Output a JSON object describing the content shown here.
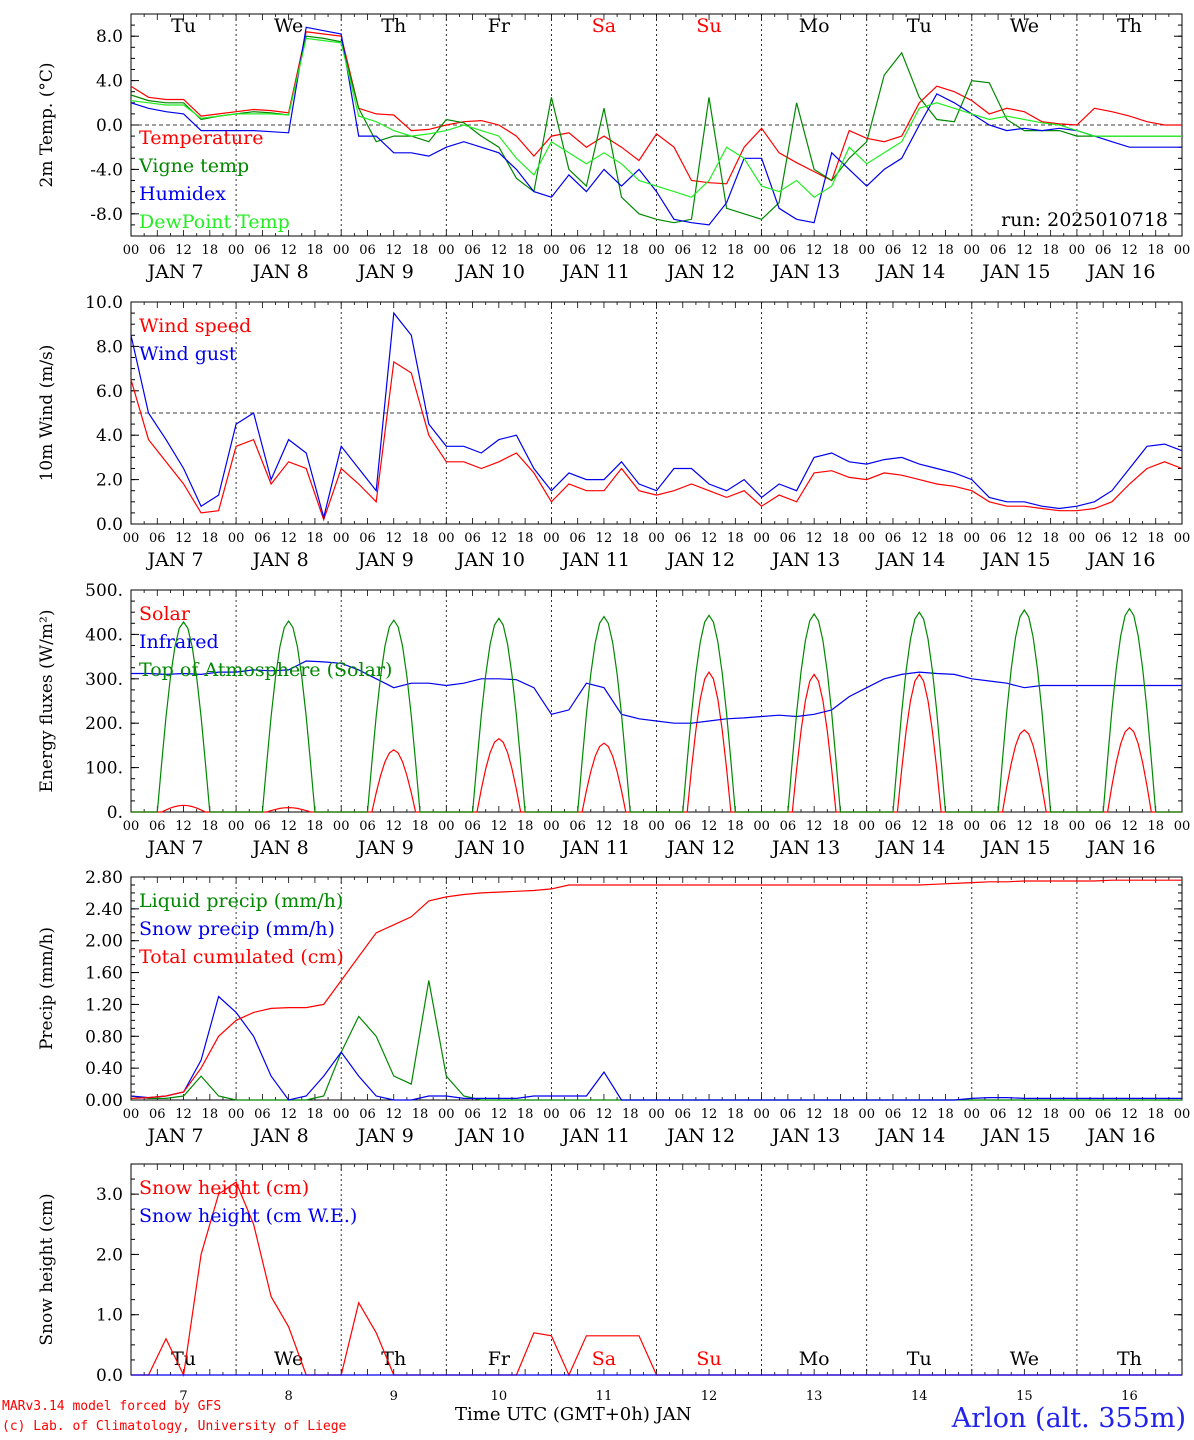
{
  "days_header": [
    "Tu",
    "We",
    "Th",
    "Fr",
    "Sa",
    "Su",
    "Mo",
    "Tu",
    "We",
    "Th"
  ],
  "weekend_days": [
    4,
    5
  ],
  "date_labels": [
    "JAN  7",
    "JAN  8",
    "JAN  9",
    "JAN 10",
    "JAN 11",
    "JAN 12",
    "JAN 13",
    "JAN 14",
    "JAN 15",
    "JAN 16"
  ],
  "hour_labels": [
    "00",
    "06",
    "12",
    "18"
  ],
  "hour_end_label": "00",
  "run_label": "run: 2025010718",
  "footer": {
    "model": "MARv3.14 model forced by GFS",
    "lab": "(c) Lab. of Climatology, University of Liege",
    "axis": "Time UTC (GMT+0h) JAN",
    "station": "Arlon (alt. 355m)"
  },
  "bottom_day_numbers": [
    "7",
    "8",
    "9",
    "10",
    "11",
    "12",
    "13",
    "14",
    "15",
    "16"
  ],
  "colors": {
    "red": "#ff0000",
    "green": "#008800",
    "blue": "#0000ee",
    "lightgreen": "#22ee22",
    "black": "#000000"
  },
  "chart_data": [
    {
      "type": "line",
      "ylabel": "2m Temp. (°C)",
      "ylim": [
        -10,
        10
      ],
      "yticks": [
        "8.0",
        "4.0",
        "0.0",
        "-4.0",
        "-8.0"
      ],
      "yticks_values": [
        8,
        4,
        0,
        -4,
        -8
      ],
      "ref_line": 0,
      "x": "hours since JAN 7 00 UTC, 3-hourly, 0..240",
      "series": [
        {
          "name": "Temperature",
          "color": "#ff0000",
          "values": [
            3.5,
            2.5,
            2.3,
            2.3,
            0.8,
            1.0,
            1.2,
            1.4,
            1.3,
            1.1,
            8.4,
            8.2,
            8.0,
            1.5,
            1.0,
            0.9,
            -0.5,
            -0.4,
            0.0,
            0.3,
            0.4,
            0.0,
            -1.0,
            -2.8,
            -1.0,
            -0.7,
            -2.0,
            -1.0,
            -2.0,
            -3.2,
            -0.8,
            -2.0,
            -5.0,
            -5.2,
            -5.3,
            -2.0,
            -0.3,
            -2.5,
            -3.4,
            -4.2,
            -5.0,
            -0.5,
            -1.2,
            -1.5,
            -1.0,
            2.0,
            3.5,
            3.0,
            2.2,
            1.0,
            1.5,
            1.2,
            0.3,
            0.1,
            0.0,
            1.5,
            1.2,
            0.8,
            0.3,
            0.0,
            0.0
          ]
        },
        {
          "name": "Vigne temp",
          "color": "#008800",
          "values": [
            2.7,
            2.2,
            2.0,
            2.0,
            0.5,
            0.8,
            1.0,
            1.2,
            1.1,
            0.9,
            8.0,
            7.8,
            7.5,
            1.5,
            -1.5,
            -1.0,
            -1.0,
            -1.5,
            0.5,
            0.2,
            -1.0,
            -2.0,
            -4.8,
            -6.0,
            2.5,
            -4.0,
            -5.5,
            1.5,
            -6.5,
            -8.0,
            -8.5,
            -8.8,
            -8.5,
            2.5,
            -7.5,
            -8.0,
            -8.5,
            -7.0,
            2.0,
            -4.0,
            -5.0,
            -3.0,
            -1.5,
            4.5,
            6.5,
            2.5,
            0.5,
            0.3,
            4.0,
            3.8,
            0.5,
            -0.5,
            -0.5,
            -0.5,
            -1.0,
            -1.0,
            -1.0,
            -1.0,
            -1.0,
            -1.0,
            -1.0
          ]
        },
        {
          "name": "Humidex",
          "color": "#0000ee",
          "values": [
            2.0,
            1.5,
            1.2,
            1.0,
            -0.5,
            -0.5,
            -0.5,
            -0.5,
            -0.6,
            -0.7,
            8.8,
            8.5,
            8.2,
            -1.0,
            -1.0,
            -2.5,
            -2.5,
            -2.8,
            -2.0,
            -1.5,
            -2.0,
            -2.5,
            -4.0,
            -6.0,
            -6.5,
            -4.5,
            -6.0,
            -4.0,
            -5.5,
            -4.0,
            -6.0,
            -8.5,
            -8.8,
            -9.0,
            -7.0,
            -3.0,
            -3.0,
            -7.5,
            -8.5,
            -8.8,
            -2.5,
            -4.0,
            -5.5,
            -4.0,
            -3.0,
            0.0,
            2.8,
            2.0,
            1.0,
            0.0,
            -0.5,
            -0.3,
            -0.5,
            -0.3,
            -0.5,
            -1.0,
            -1.5,
            -2.0,
            -2.0,
            -2.0,
            -2.0
          ]
        },
        {
          "name": "DewPoint Temp",
          "color": "#22ee22",
          "values": [
            2.2,
            2.0,
            1.8,
            1.8,
            0.6,
            0.8,
            1.0,
            1.0,
            1.0,
            0.9,
            7.8,
            7.6,
            7.4,
            0.8,
            0.3,
            -0.5,
            -1.0,
            -0.8,
            -0.5,
            0.0,
            -0.5,
            -1.0,
            -3.0,
            -4.5,
            -1.5,
            -2.5,
            -3.5,
            -2.5,
            -3.5,
            -5.0,
            -5.5,
            -6.0,
            -6.5,
            -5.0,
            -2.0,
            -3.0,
            -5.5,
            -6.0,
            -5.0,
            -6.5,
            -5.5,
            -2.0,
            -3.5,
            -2.5,
            -1.5,
            1.5,
            2.0,
            1.5,
            1.0,
            0.5,
            0.8,
            0.5,
            0.2,
            0.0,
            -0.5,
            -1.0,
            -1.0,
            -1.0,
            -1.0,
            -1.0,
            -1.0
          ]
        }
      ]
    },
    {
      "type": "line",
      "ylabel": "10m Wind (m/s)",
      "ylim": [
        0,
        10
      ],
      "yticks": [
        "10.0",
        "8.0",
        "6.0",
        "4.0",
        "2.0",
        "0.0"
      ],
      "yticks_values": [
        10,
        8,
        6,
        4,
        2,
        0
      ],
      "ref_line": 5,
      "series": [
        {
          "name": "Wind speed",
          "color": "#ff0000",
          "values": [
            6.5,
            3.8,
            2.8,
            1.8,
            0.5,
            0.6,
            3.5,
            3.8,
            1.8,
            2.8,
            2.5,
            0.2,
            2.5,
            1.8,
            1.0,
            7.3,
            6.8,
            4.0,
            2.8,
            2.8,
            2.5,
            2.8,
            3.2,
            2.3,
            1.0,
            1.8,
            1.5,
            1.5,
            2.5,
            1.5,
            1.3,
            1.5,
            1.8,
            1.5,
            1.2,
            1.5,
            0.8,
            1.3,
            1.0,
            2.3,
            2.4,
            2.1,
            2.0,
            2.3,
            2.2,
            2.0,
            1.8,
            1.7,
            1.5,
            1.0,
            0.8,
            0.8,
            0.7,
            0.6,
            0.6,
            0.7,
            1.0,
            1.8,
            2.5,
            2.8,
            2.5
          ]
        },
        {
          "name": "Wind gust",
          "color": "#0000ee",
          "values": [
            8.5,
            5.0,
            3.8,
            2.5,
            0.8,
            1.3,
            4.5,
            5.0,
            2.0,
            3.8,
            3.2,
            0.3,
            3.5,
            2.5,
            1.5,
            9.5,
            8.5,
            4.5,
            3.5,
            3.5,
            3.2,
            3.8,
            4.0,
            2.5,
            1.5,
            2.3,
            2.0,
            2.0,
            2.8,
            1.8,
            1.5,
            2.5,
            2.5,
            1.8,
            1.5,
            2.0,
            1.2,
            1.8,
            1.5,
            3.0,
            3.2,
            2.8,
            2.7,
            2.9,
            3.0,
            2.7,
            2.5,
            2.3,
            2.0,
            1.2,
            1.0,
            1.0,
            0.8,
            0.7,
            0.8,
            1.0,
            1.5,
            2.5,
            3.5,
            3.6,
            3.3
          ]
        }
      ]
    },
    {
      "type": "line",
      "ylabel": "Energy fluxes (W/m²)",
      "ylim": [
        0,
        500
      ],
      "yticks": [
        "500.",
        "400.",
        "300.",
        "200.",
        "100.",
        "0."
      ],
      "yticks_values": [
        500,
        400,
        300,
        200,
        100,
        0
      ],
      "series": [
        {
          "name": "Solar",
          "color": "#ff0000",
          "peaks": [
            15,
            10,
            140,
            165,
            155,
            315,
            310,
            310,
            185,
            190
          ]
        },
        {
          "name": "Infrared",
          "color": "#0000ee",
          "values": [
            312,
            312,
            310,
            312,
            310,
            315,
            315,
            320,
            318,
            320,
            340,
            338,
            335,
            320,
            300,
            280,
            290,
            290,
            285,
            290,
            300,
            300,
            298,
            280,
            220,
            230,
            290,
            280,
            220,
            210,
            205,
            200,
            200,
            205,
            210,
            212,
            215,
            218,
            215,
            220,
            230,
            260,
            280,
            300,
            310,
            315,
            312,
            310,
            300,
            295,
            290,
            280,
            285,
            285,
            285,
            285,
            285,
            285,
            285,
            285,
            285
          ]
        },
        {
          "name": "Top of Atmosphere (Solar)",
          "color": "#008800",
          "peaks": [
            428,
            430,
            432,
            436,
            440,
            443,
            446,
            450,
            455,
            458
          ]
        }
      ]
    },
    {
      "type": "line",
      "ylabel": "Precip (mm/h)",
      "ylim": [
        0,
        2.8
      ],
      "yticks": [
        "2.80",
        "2.40",
        "2.00",
        "1.60",
        "1.20",
        "0.80",
        "0.40",
        "0.00"
      ],
      "yticks_values": [
        2.8,
        2.4,
        2.0,
        1.6,
        1.2,
        0.8,
        0.4,
        0.0
      ],
      "series": [
        {
          "name": "Liquid precip (mm/h)",
          "color": "#008800",
          "values": [
            0.05,
            0.02,
            0.02,
            0.05,
            0.3,
            0.05,
            0.0,
            0.0,
            0.0,
            0.0,
            0.0,
            0.05,
            0.6,
            1.05,
            0.8,
            0.3,
            0.2,
            1.5,
            0.3,
            0.05,
            0.0,
            0.0,
            0.0,
            0.0,
            0.0,
            0.0,
            0.0,
            0.0,
            0.0,
            0.0,
            0.0,
            0.0,
            0.0,
            0.0,
            0.0,
            0.0,
            0.0,
            0.0,
            0.0,
            0.0,
            0.0,
            0.0,
            0.0,
            0.0,
            0.0,
            0.0,
            0.0,
            0.0,
            0.0,
            0.0,
            0.0,
            0.0,
            0.0,
            0.0,
            0.0,
            0.0,
            0.0,
            0.0,
            0.0,
            0.0,
            0.0
          ]
        },
        {
          "name": "Snow precip (mm/h)",
          "color": "#0000ee",
          "values": [
            0.05,
            0.03,
            0.05,
            0.1,
            0.5,
            1.3,
            1.1,
            0.8,
            0.3,
            0.0,
            0.05,
            0.3,
            0.6,
            0.3,
            0.05,
            0.0,
            0.0,
            0.05,
            0.05,
            0.02,
            0.02,
            0.02,
            0.02,
            0.05,
            0.05,
            0.05,
            0.05,
            0.35,
            0.0,
            0.0,
            0.0,
            0.0,
            0.0,
            0.0,
            0.0,
            0.0,
            0.0,
            0.0,
            0.0,
            0.0,
            0.0,
            0.0,
            0.0,
            0.0,
            0.0,
            0.0,
            0.0,
            0.0,
            0.02,
            0.03,
            0.03,
            0.02,
            0.02,
            0.02,
            0.02,
            0.02,
            0.02,
            0.02,
            0.02,
            0.02,
            0.02
          ]
        },
        {
          "name": "Total cumulated (cm)",
          "color": "#ff0000",
          "values": [
            0.02,
            0.03,
            0.05,
            0.1,
            0.4,
            0.8,
            1.0,
            1.1,
            1.15,
            1.16,
            1.16,
            1.2,
            1.5,
            1.8,
            2.1,
            2.2,
            2.3,
            2.5,
            2.55,
            2.58,
            2.6,
            2.61,
            2.62,
            2.63,
            2.65,
            2.7,
            2.7,
            2.7,
            2.7,
            2.7,
            2.7,
            2.7,
            2.7,
            2.7,
            2.7,
            2.7,
            2.7,
            2.7,
            2.7,
            2.7,
            2.7,
            2.7,
            2.7,
            2.7,
            2.7,
            2.7,
            2.71,
            2.72,
            2.73,
            2.74,
            2.74,
            2.75,
            2.75,
            2.75,
            2.75,
            2.75,
            2.76,
            2.76,
            2.76,
            2.76,
            2.76
          ]
        }
      ]
    },
    {
      "type": "line",
      "ylabel": "Snow height (cm)",
      "ylim": [
        0,
        3.5
      ],
      "yticks": [
        "3.0",
        "2.0",
        "1.0",
        "0.0"
      ],
      "yticks_values": [
        3.0,
        2.0,
        1.0,
        0.0
      ],
      "series": [
        {
          "name": "Snow height (cm)",
          "color": "#ff0000",
          "values": [
            0.0,
            0.0,
            0.6,
            0.0,
            2.0,
            3.0,
            3.2,
            2.5,
            1.3,
            0.8,
            0.0,
            0.0,
            0.0,
            1.2,
            0.7,
            0.0,
            0.0,
            0.0,
            0.0,
            0.0,
            0.0,
            0.0,
            0.0,
            0.7,
            0.65,
            0.0,
            0.65,
            0.65,
            0.65,
            0.65,
            0.0,
            0.0,
            0.0,
            0.0,
            0.0,
            0.0,
            0.0,
            0.0,
            0.0,
            0.0,
            0.0,
            0.0,
            0.0,
            0.0,
            0.0,
            0.0,
            0.0,
            0.0,
            0.0,
            0.0,
            0.0,
            0.0,
            0.0,
            0.0,
            0.0,
            0.0,
            0.0,
            0.0,
            0.0,
            0.0,
            0.0
          ]
        },
        {
          "name": "Snow height (cm W.E.)",
          "color": "#0000ee",
          "values": [
            0.0,
            0.0,
            0.0,
            0.0,
            0.0,
            0.0,
            0.0,
            0.0,
            0.0,
            0.0,
            0.0,
            0.0,
            0.0,
            0.0,
            0.0,
            0.0,
            0.0,
            0.0,
            0.0,
            0.0,
            0.0,
            0.0,
            0.0,
            0.0,
            0.0,
            0.0,
            0.0,
            0.0,
            0.0,
            0.0,
            0.0,
            0.0,
            0.0,
            0.0,
            0.0,
            0.0,
            0.0,
            0.0,
            0.0,
            0.0,
            0.0,
            0.0,
            0.0,
            0.0,
            0.0,
            0.0,
            0.0,
            0.0,
            0.0,
            0.0,
            0.0,
            0.0,
            0.0,
            0.0,
            0.0,
            0.0,
            0.0,
            0.0,
            0.0,
            0.0,
            0.0
          ]
        }
      ]
    }
  ]
}
